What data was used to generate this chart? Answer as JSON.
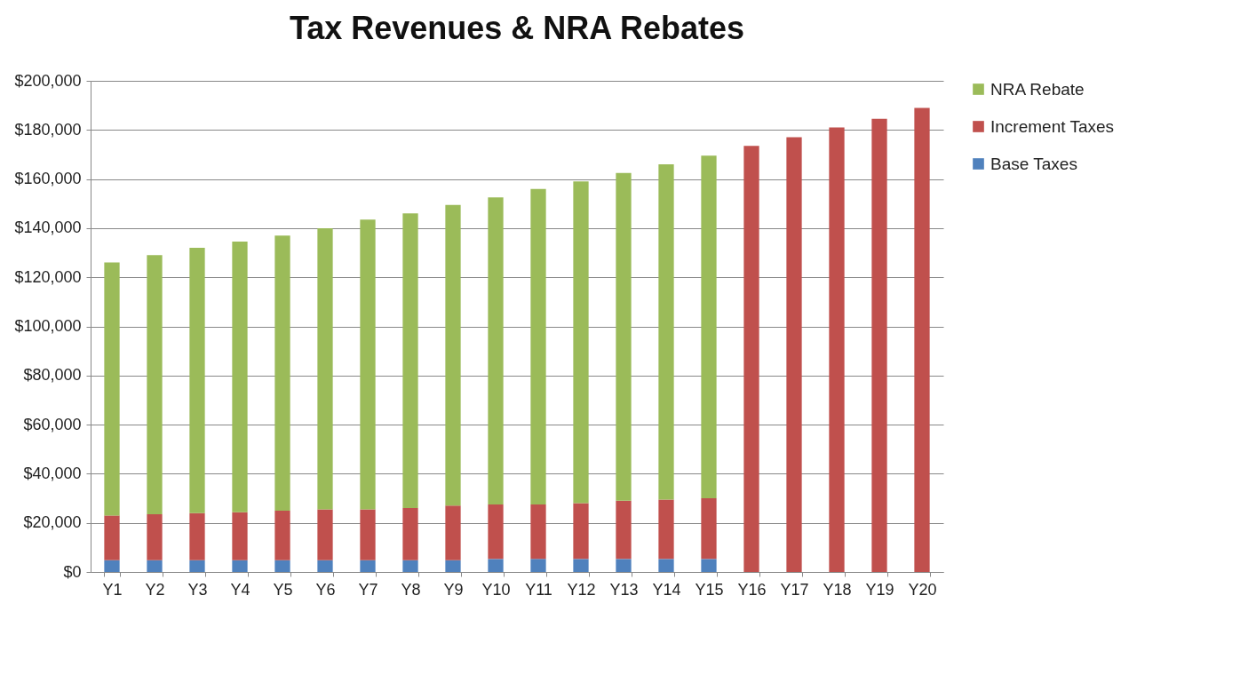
{
  "chart_data": {
    "type": "bar",
    "title": "Tax Revenues & NRA Rebates",
    "stacked": true,
    "legend": "right",
    "grid": "y",
    "categories": [
      "Y1",
      "Y2",
      "Y3",
      "Y4",
      "Y5",
      "Y6",
      "Y7",
      "Y8",
      "Y9",
      "Y10",
      "Y11",
      "Y12",
      "Y13",
      "Y14",
      "Y15",
      "Y16",
      "Y17",
      "Y18",
      "Y19",
      "Y20"
    ],
    "ylim": [
      0,
      200000
    ],
    "yticks": [
      {
        "value": 0,
        "label": "$0"
      },
      {
        "value": 20000,
        "label": "$20,000"
      },
      {
        "value": 40000,
        "label": "$40,000"
      },
      {
        "value": 60000,
        "label": "$60,000"
      },
      {
        "value": 80000,
        "label": "$80,000"
      },
      {
        "value": 100000,
        "label": "$100,000"
      },
      {
        "value": 120000,
        "label": "$120,000"
      },
      {
        "value": 140000,
        "label": "$140,000"
      },
      {
        "value": 160000,
        "label": "$160,000"
      },
      {
        "value": 180000,
        "label": "$180,000"
      },
      {
        "value": 200000,
        "label": "$200,000"
      }
    ],
    "series": [
      {
        "name": "Base Taxes",
        "color": "#4f81bd",
        "values": [
          4800,
          4800,
          4800,
          4800,
          4800,
          4800,
          4800,
          4800,
          4800,
          5300,
          5300,
          5300,
          5300,
          5300,
          5300,
          null,
          null,
          null,
          null,
          null
        ]
      },
      {
        "name": "Increment Taxes",
        "color": "#c0504d",
        "values": [
          18200,
          18700,
          19200,
          19500,
          20200,
          20700,
          20700,
          21200,
          22200,
          22200,
          22200,
          22700,
          23700,
          24200,
          24700,
          173500,
          177000,
          181000,
          184500,
          189000
        ]
      },
      {
        "name": "NRA Rebate",
        "color": "#9bbb59",
        "values": [
          103000,
          105500,
          108000,
          110200,
          112000,
          114500,
          118000,
          120000,
          122500,
          125000,
          128500,
          131000,
          133500,
          136500,
          139500,
          null,
          null,
          null,
          null,
          null
        ]
      }
    ]
  }
}
